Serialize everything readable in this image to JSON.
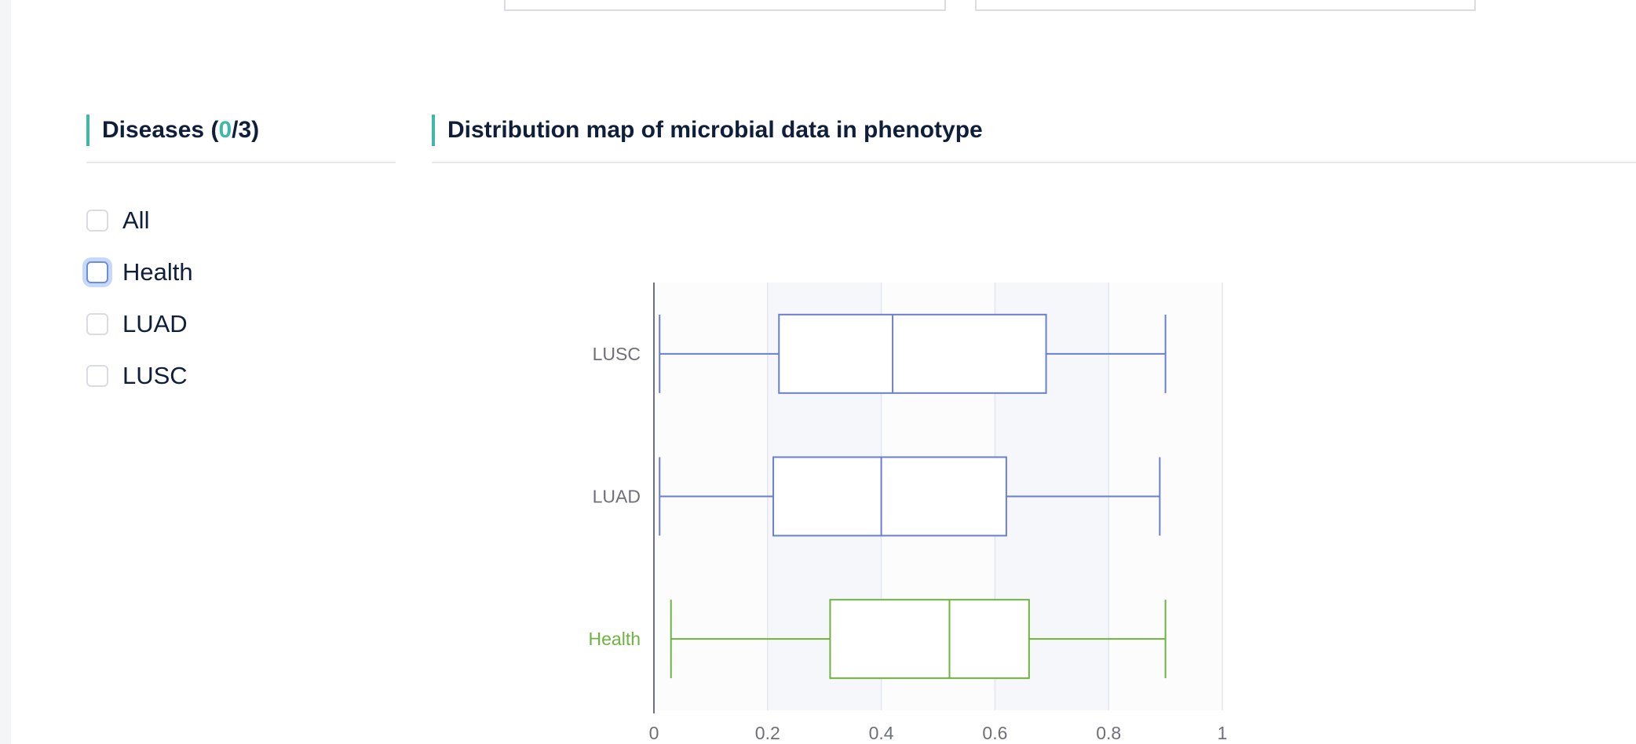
{
  "filter_panel": {
    "title_prefix": "Diseases (",
    "selected_count": "0",
    "title_suffix": "/3)",
    "items": [
      {
        "label": "All",
        "checked": false
      },
      {
        "label": "Health",
        "checked": false
      },
      {
        "label": "LUAD",
        "checked": false
      },
      {
        "label": "LUSC",
        "checked": false
      }
    ]
  },
  "chart_panel": {
    "title": "Distribution map of microbial data in phenotype"
  },
  "colors": {
    "accent": "#3fb8a8",
    "disease_series": "#6a7fcf",
    "health_series": "#6db33f",
    "text": "#0f1f3a"
  },
  "chart_data": {
    "type": "boxplot",
    "orientation": "horizontal",
    "xlim": [
      0,
      1
    ],
    "x_ticks": [
      0,
      0.2,
      0.4,
      0.6,
      0.8,
      1
    ],
    "x_tick_labels": [
      "0",
      "0.2",
      "0.4",
      "0.6",
      "0.8",
      "1"
    ],
    "categories": [
      "Health",
      "LUAD",
      "LUSC"
    ],
    "series": [
      {
        "category": "Health",
        "min": 0.03,
        "q1": 0.31,
        "median": 0.52,
        "q3": 0.66,
        "max": 0.9,
        "color": "#6db33f"
      },
      {
        "category": "LUAD",
        "min": 0.01,
        "q1": 0.21,
        "median": 0.4,
        "q3": 0.62,
        "max": 0.89,
        "color": "#6a7fcf"
      },
      {
        "category": "LUSC",
        "min": 0.01,
        "q1": 0.22,
        "median": 0.42,
        "q3": 0.69,
        "max": 0.9,
        "color": "#6a7fcf"
      }
    ],
    "grid": true
  }
}
